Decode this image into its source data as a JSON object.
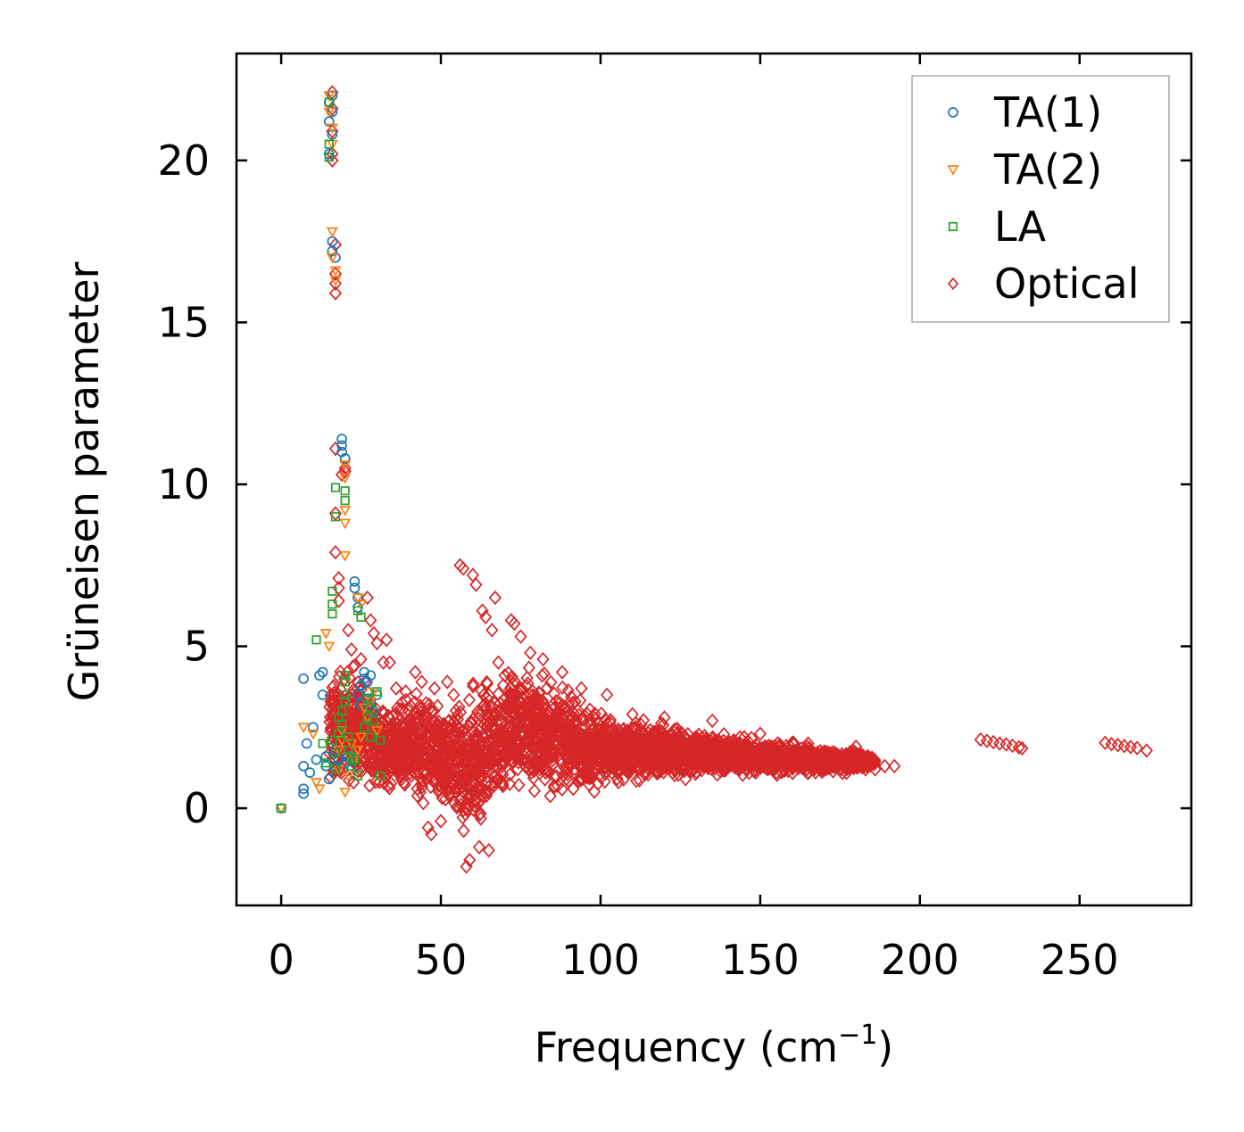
{
  "chart_data": {
    "type": "scatter",
    "title": "",
    "xlabel_main": "Frequency (cm",
    "xlabel_sup": "−1",
    "xlabel_close": ")",
    "ylabel": "Grüneisen parameter",
    "xlim": [
      -14,
      285
    ],
    "ylim": [
      -3,
      23.3
    ],
    "xticks": [
      0,
      50,
      100,
      150,
      200,
      250
    ],
    "xtick_labels": [
      "0",
      "50",
      "100",
      "150",
      "200",
      "250"
    ],
    "yticks": [
      0,
      5,
      10,
      15,
      20
    ],
    "ytick_labels": [
      "0",
      "5",
      "10",
      "15",
      "20"
    ],
    "legend_position": "top-right",
    "series": [
      {
        "name": "TA(1)",
        "marker": "circle",
        "color": "#1f77b4",
        "points": [
          [
            0,
            0
          ],
          [
            7,
            0.45
          ],
          [
            7,
            0.6
          ],
          [
            7,
            1.3
          ],
          [
            7,
            4
          ],
          [
            8,
            2
          ],
          [
            9,
            1.1
          ],
          [
            10,
            2.5
          ],
          [
            11,
            1.5
          ],
          [
            12,
            4.1
          ],
          [
            13,
            3.5
          ],
          [
            13,
            4.2
          ],
          [
            14,
            1.3
          ],
          [
            14,
            1.6
          ],
          [
            15,
            0.9
          ],
          [
            15,
            20.2
          ],
          [
            15,
            21.2
          ],
          [
            15,
            21.8
          ],
          [
            16,
            22
          ],
          [
            16,
            21.5
          ],
          [
            16,
            20.8
          ],
          [
            16,
            17.5
          ],
          [
            16,
            17.2
          ],
          [
            17,
            17
          ],
          [
            17,
            1.8
          ],
          [
            17,
            1.3
          ],
          [
            18,
            1.5
          ],
          [
            19,
            11.4
          ],
          [
            19,
            11.2
          ],
          [
            19,
            11
          ],
          [
            20,
            10.8
          ],
          [
            20,
            1.4
          ],
          [
            21,
            1.6
          ],
          [
            22,
            1.2
          ],
          [
            23,
            7
          ],
          [
            23,
            6.8
          ],
          [
            24,
            6.5
          ],
          [
            24,
            6.2
          ],
          [
            24,
            3.5
          ],
          [
            25,
            3.2
          ],
          [
            25,
            3.8
          ],
          [
            26,
            4
          ],
          [
            26,
            4.2
          ],
          [
            27,
            3.6
          ],
          [
            27,
            3.9
          ],
          [
            28,
            4.1
          ],
          [
            28,
            3.3
          ],
          [
            29,
            3
          ],
          [
            30,
            3.5
          ]
        ]
      },
      {
        "name": "TA(2)",
        "marker": "triangle-down",
        "color": "#ff7f0e",
        "points": [
          [
            0,
            0
          ],
          [
            7,
            2.5
          ],
          [
            10,
            2.3
          ],
          [
            11,
            0.8
          ],
          [
            12,
            0.6
          ],
          [
            14,
            5.4
          ],
          [
            15,
            5
          ],
          [
            15,
            22
          ],
          [
            15,
            21.5
          ],
          [
            16,
            21
          ],
          [
            16,
            20.5
          ],
          [
            16,
            17.8
          ],
          [
            16,
            17
          ],
          [
            17,
            16.6
          ],
          [
            17,
            16.3
          ],
          [
            18,
            1.2
          ],
          [
            18,
            1.8
          ],
          [
            19,
            2.1
          ],
          [
            19,
            2.4
          ],
          [
            20,
            10.6
          ],
          [
            20,
            10.2
          ],
          [
            20,
            8.8
          ],
          [
            20,
            9.2
          ],
          [
            20,
            7.8
          ],
          [
            20,
            0.5
          ],
          [
            21,
            1
          ],
          [
            22,
            2
          ],
          [
            23,
            1.5
          ],
          [
            24,
            1.8
          ],
          [
            24,
            6.5
          ],
          [
            25,
            6.3
          ],
          [
            25,
            2.2
          ],
          [
            26,
            3.1
          ],
          [
            27,
            2.8
          ],
          [
            28,
            3.3
          ],
          [
            29,
            3.6
          ],
          [
            30,
            2.4
          ]
        ]
      },
      {
        "name": "LA",
        "marker": "square",
        "color": "#2ca02c",
        "points": [
          [
            0,
            0
          ],
          [
            11,
            5.2
          ],
          [
            13,
            2
          ],
          [
            14,
            1.4
          ],
          [
            15,
            21.8
          ],
          [
            15,
            20.1
          ],
          [
            15,
            20.5
          ],
          [
            16,
            6
          ],
          [
            16,
            6.3
          ],
          [
            16,
            6.7
          ],
          [
            16,
            2.1
          ],
          [
            17,
            9
          ],
          [
            17,
            9.9
          ],
          [
            17,
            1.2
          ],
          [
            17,
            1.7
          ],
          [
            18,
            2.8
          ],
          [
            18,
            2.3
          ],
          [
            19,
            2.6
          ],
          [
            19,
            3
          ],
          [
            20,
            9.8
          ],
          [
            20,
            9.5
          ],
          [
            20,
            3.5
          ],
          [
            20,
            3.9
          ],
          [
            20,
            4.1
          ],
          [
            20,
            3.3
          ],
          [
            21,
            2.2
          ],
          [
            21,
            1.8
          ],
          [
            22,
            1.6
          ],
          [
            22,
            1.3
          ],
          [
            23,
            1.5
          ],
          [
            24,
            1
          ],
          [
            24,
            6.1
          ],
          [
            25,
            5.9
          ],
          [
            26,
            2.5
          ],
          [
            27,
            2.8
          ],
          [
            27,
            3.4
          ],
          [
            28,
            2.2
          ],
          [
            28,
            3.1
          ],
          [
            29,
            2.7
          ],
          [
            30,
            3.6
          ],
          [
            31,
            1
          ],
          [
            31,
            2.1
          ]
        ]
      },
      {
        "name": "Optical",
        "marker": "diamond",
        "color": "#d62728",
        "note": "dense envelope sampled from the visible cloud",
        "envelope": [
          [
            15,
            0.5,
            4.2
          ],
          [
            20,
            0.4,
            5
          ],
          [
            25,
            0.5,
            4.6
          ],
          [
            30,
            0.4,
            3.6
          ],
          [
            35,
            0.3,
            3.4
          ],
          [
            40,
            0.2,
            3.8
          ],
          [
            45,
            -0.5,
            3.8
          ],
          [
            50,
            -0.4,
            3.6
          ],
          [
            55,
            -1,
            3.8
          ],
          [
            58,
            -1.8,
            4
          ],
          [
            62,
            -1.2,
            4.4
          ],
          [
            66,
            -0.4,
            4.6
          ],
          [
            70,
            -0.2,
            4.8
          ],
          [
            75,
            0,
            5.2
          ],
          [
            80,
            0,
            4.8
          ],
          [
            85,
            0.1,
            4.4
          ],
          [
            90,
            0,
            4
          ],
          [
            95,
            0.2,
            3.6
          ],
          [
            100,
            0.4,
            3.2
          ],
          [
            110,
            0.6,
            2.9
          ],
          [
            120,
            0.7,
            2.8
          ],
          [
            130,
            0.8,
            2.6
          ],
          [
            140,
            0.9,
            2.4
          ],
          [
            150,
            0.9,
            2.2
          ],
          [
            160,
            1,
            2.1
          ],
          [
            170,
            1,
            1.9
          ],
          [
            180,
            1.1,
            1.8
          ],
          [
            186,
            1.3,
            1.6
          ]
        ],
        "points": [
          [
            16,
            22.1
          ],
          [
            16,
            21.6
          ],
          [
            16,
            20.9
          ],
          [
            16,
            20.2
          ],
          [
            16,
            20
          ],
          [
            17,
            17.4
          ],
          [
            17,
            16.5
          ],
          [
            17,
            16.2
          ],
          [
            17,
            15.9
          ],
          [
            17,
            11.1
          ],
          [
            17,
            9.1
          ],
          [
            17,
            7.9
          ],
          [
            18,
            7.1
          ],
          [
            18,
            6.8
          ],
          [
            18,
            6.4
          ],
          [
            19,
            10.3
          ],
          [
            20,
            10.5
          ],
          [
            20,
            10.4
          ],
          [
            21,
            5.5
          ],
          [
            22,
            4.9
          ],
          [
            23,
            4.4
          ],
          [
            25,
            4.6
          ],
          [
            27,
            6.5
          ],
          [
            28,
            5.8
          ],
          [
            29,
            5.4
          ],
          [
            30,
            5.1
          ],
          [
            32,
            4.5
          ],
          [
            33,
            5.2
          ],
          [
            34,
            4.5
          ],
          [
            36,
            3.7
          ],
          [
            39,
            3.6
          ],
          [
            42,
            4.2
          ],
          [
            44,
            3.9
          ],
          [
            46,
            -0.6
          ],
          [
            47,
            -0.8
          ],
          [
            48,
            3.7
          ],
          [
            50,
            -0.4
          ],
          [
            52,
            3.9
          ],
          [
            54,
            3.5
          ],
          [
            56,
            7.5
          ],
          [
            57,
            7.4
          ],
          [
            58,
            -1.8
          ],
          [
            59,
            -1.6
          ],
          [
            60,
            7.2
          ],
          [
            61,
            6.9
          ],
          [
            62,
            -1.2
          ],
          [
            63,
            6.1
          ],
          [
            64,
            5.9
          ],
          [
            65,
            -1.3
          ],
          [
            66,
            5.5
          ],
          [
            67,
            6.5
          ],
          [
            68,
            4.5
          ],
          [
            70,
            4.1
          ],
          [
            72,
            5.8
          ],
          [
            73,
            5.7
          ],
          [
            75,
            5.3
          ],
          [
            78,
            4.8
          ],
          [
            82,
            4.6
          ],
          [
            88,
            4.2
          ],
          [
            94,
            3.7
          ],
          [
            102,
            3.5
          ],
          [
            110,
            2.9
          ],
          [
            120,
            2.8
          ],
          [
            135,
            2.7
          ],
          [
            150,
            2.3
          ],
          [
            165,
            2
          ],
          [
            180,
            1.9
          ],
          [
            183,
            1.2
          ],
          [
            186,
            1.2
          ],
          [
            189,
            1.3
          ],
          [
            192,
            1.3
          ],
          [
            219,
            2.12
          ],
          [
            221,
            2.08
          ],
          [
            223,
            2.04
          ],
          [
            225,
            2
          ],
          [
            227,
            1.97
          ],
          [
            229,
            1.93
          ],
          [
            231,
            1.88
          ],
          [
            232,
            1.85
          ],
          [
            258,
            2.02
          ],
          [
            260,
            1.98
          ],
          [
            262,
            1.95
          ],
          [
            264,
            1.92
          ],
          [
            266,
            1.89
          ],
          [
            268,
            1.86
          ],
          [
            271,
            1.78
          ]
        ]
      }
    ]
  }
}
